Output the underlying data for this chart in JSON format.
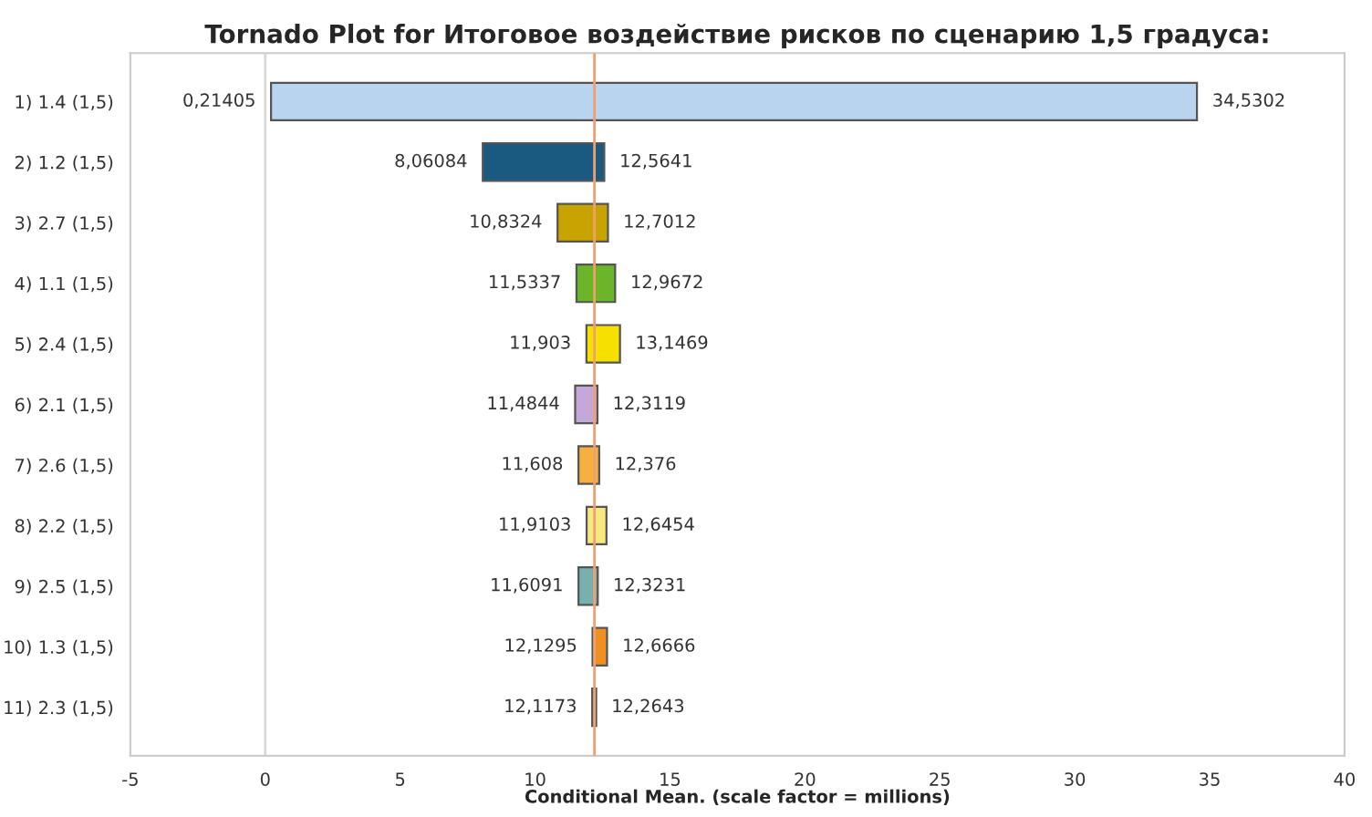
{
  "chart_data": {
    "type": "bar",
    "orientation": "horizontal",
    "title": "Tornado Plot for Итоговое воздействие рисков по сценарию 1,5 градуса:",
    "xlabel": "Conditional Mean. (scale factor = millions)",
    "categories": [
      "1) 1.4 (1,5)",
      "2) 1.2 (1,5)",
      "3) 2.7 (1,5)",
      "4) 1.1 (1,5)",
      "5) 2.4 (1,5)",
      "6) 2.1 (1,5)",
      "7) 2.6 (1,5)",
      "8) 2.2 (1,5)",
      "9) 2.5 (1,5)",
      "10) 1.3 (1,5)",
      "11) 2.3 (1,5)"
    ],
    "base": [
      0.21405,
      8.06084,
      10.8324,
      11.5337,
      11.903,
      11.4844,
      11.608,
      11.9103,
      11.6091,
      12.1295,
      12.1173
    ],
    "values": [
      34.31615,
      4.50326,
      1.8688,
      1.4335,
      1.2439,
      0.8275,
      0.768,
      0.7351,
      0.714,
      0.5371,
      0.147
    ],
    "colors": [
      "#b8d4ee",
      "#1a5a80",
      "#c8a400",
      "#6bb52a",
      "#f5e000",
      "#c4a8d8",
      "#f5b040",
      "#f8e880",
      "#78b0b0",
      "#f09020",
      "#88b070"
    ],
    "xlim": [
      -5,
      40
    ],
    "xticks": [
      -5,
      0,
      5,
      10,
      15,
      20,
      25,
      30,
      35,
      40
    ],
    "grid": false,
    "legend": false,
    "ref_lines": [
      {
        "axis": "x",
        "value": 0,
        "color": "#d8d8d8"
      },
      {
        "axis": "x",
        "value": 12.2,
        "color": "#f0a070"
      }
    ],
    "annotations": [
      {
        "text": "0,21405",
        "x": 0.21405,
        "y": "1) 1.4 (1,5)"
      },
      {
        "text": "34,5302",
        "x": 34.5302,
        "y": "1) 1.4 (1,5)"
      },
      {
        "text": "8,06084",
        "x": 8.06084,
        "y": "2) 1.2 (1,5)"
      },
      {
        "text": "12,5641",
        "x": 12.5641,
        "y": "2) 1.2 (1,5)"
      },
      {
        "text": "10,8324",
        "x": 10.8324,
        "y": "3) 2.7 (1,5)"
      },
      {
        "text": "12,7012",
        "x": 12.7012,
        "y": "3) 2.7 (1,5)"
      },
      {
        "text": "11,5337",
        "x": 11.5337,
        "y": "4) 1.1 (1,5)"
      },
      {
        "text": "12,9672",
        "x": 12.9672,
        "y": "4) 1.1 (1,5)"
      },
      {
        "text": "11,903",
        "x": 11.903,
        "y": "5) 2.4 (1,5)"
      },
      {
        "text": "13,1469",
        "x": 13.1469,
        "y": "5) 2.4 (1,5)"
      },
      {
        "text": "11,4844",
        "x": 11.4844,
        "y": "6) 2.1 (1,5)"
      },
      {
        "text": "12,3119",
        "x": 12.3119,
        "y": "6) 2.1 (1,5)"
      },
      {
        "text": "11,608",
        "x": 11.608,
        "y": "7) 2.6 (1,5)"
      },
      {
        "text": "12,376",
        "x": 12.376,
        "y": "7) 2.6 (1,5)"
      },
      {
        "text": "11,9103",
        "x": 11.9103,
        "y": "8) 2.2 (1,5)"
      },
      {
        "text": "12,6454",
        "x": 12.6454,
        "y": "8) 2.2 (1,5)"
      },
      {
        "text": "11,6091",
        "x": 11.6091,
        "y": "9) 2.5 (1,5)"
      },
      {
        "text": "12,3231",
        "x": 12.3231,
        "y": "9) 2.5 (1,5)"
      },
      {
        "text": "12,1295",
        "x": 12.1295,
        "y": "10) 1.3 (1,5)"
      },
      {
        "text": "12,6666",
        "x": 12.6666,
        "y": "10) 1.3 (1,5)"
      },
      {
        "text": "12,1173",
        "x": 12.1173,
        "y": "11) 2.3 (1,5)"
      },
      {
        "text": "12,2643",
        "x": 12.2643,
        "y": "11) 2.3 (1,5)"
      }
    ]
  }
}
